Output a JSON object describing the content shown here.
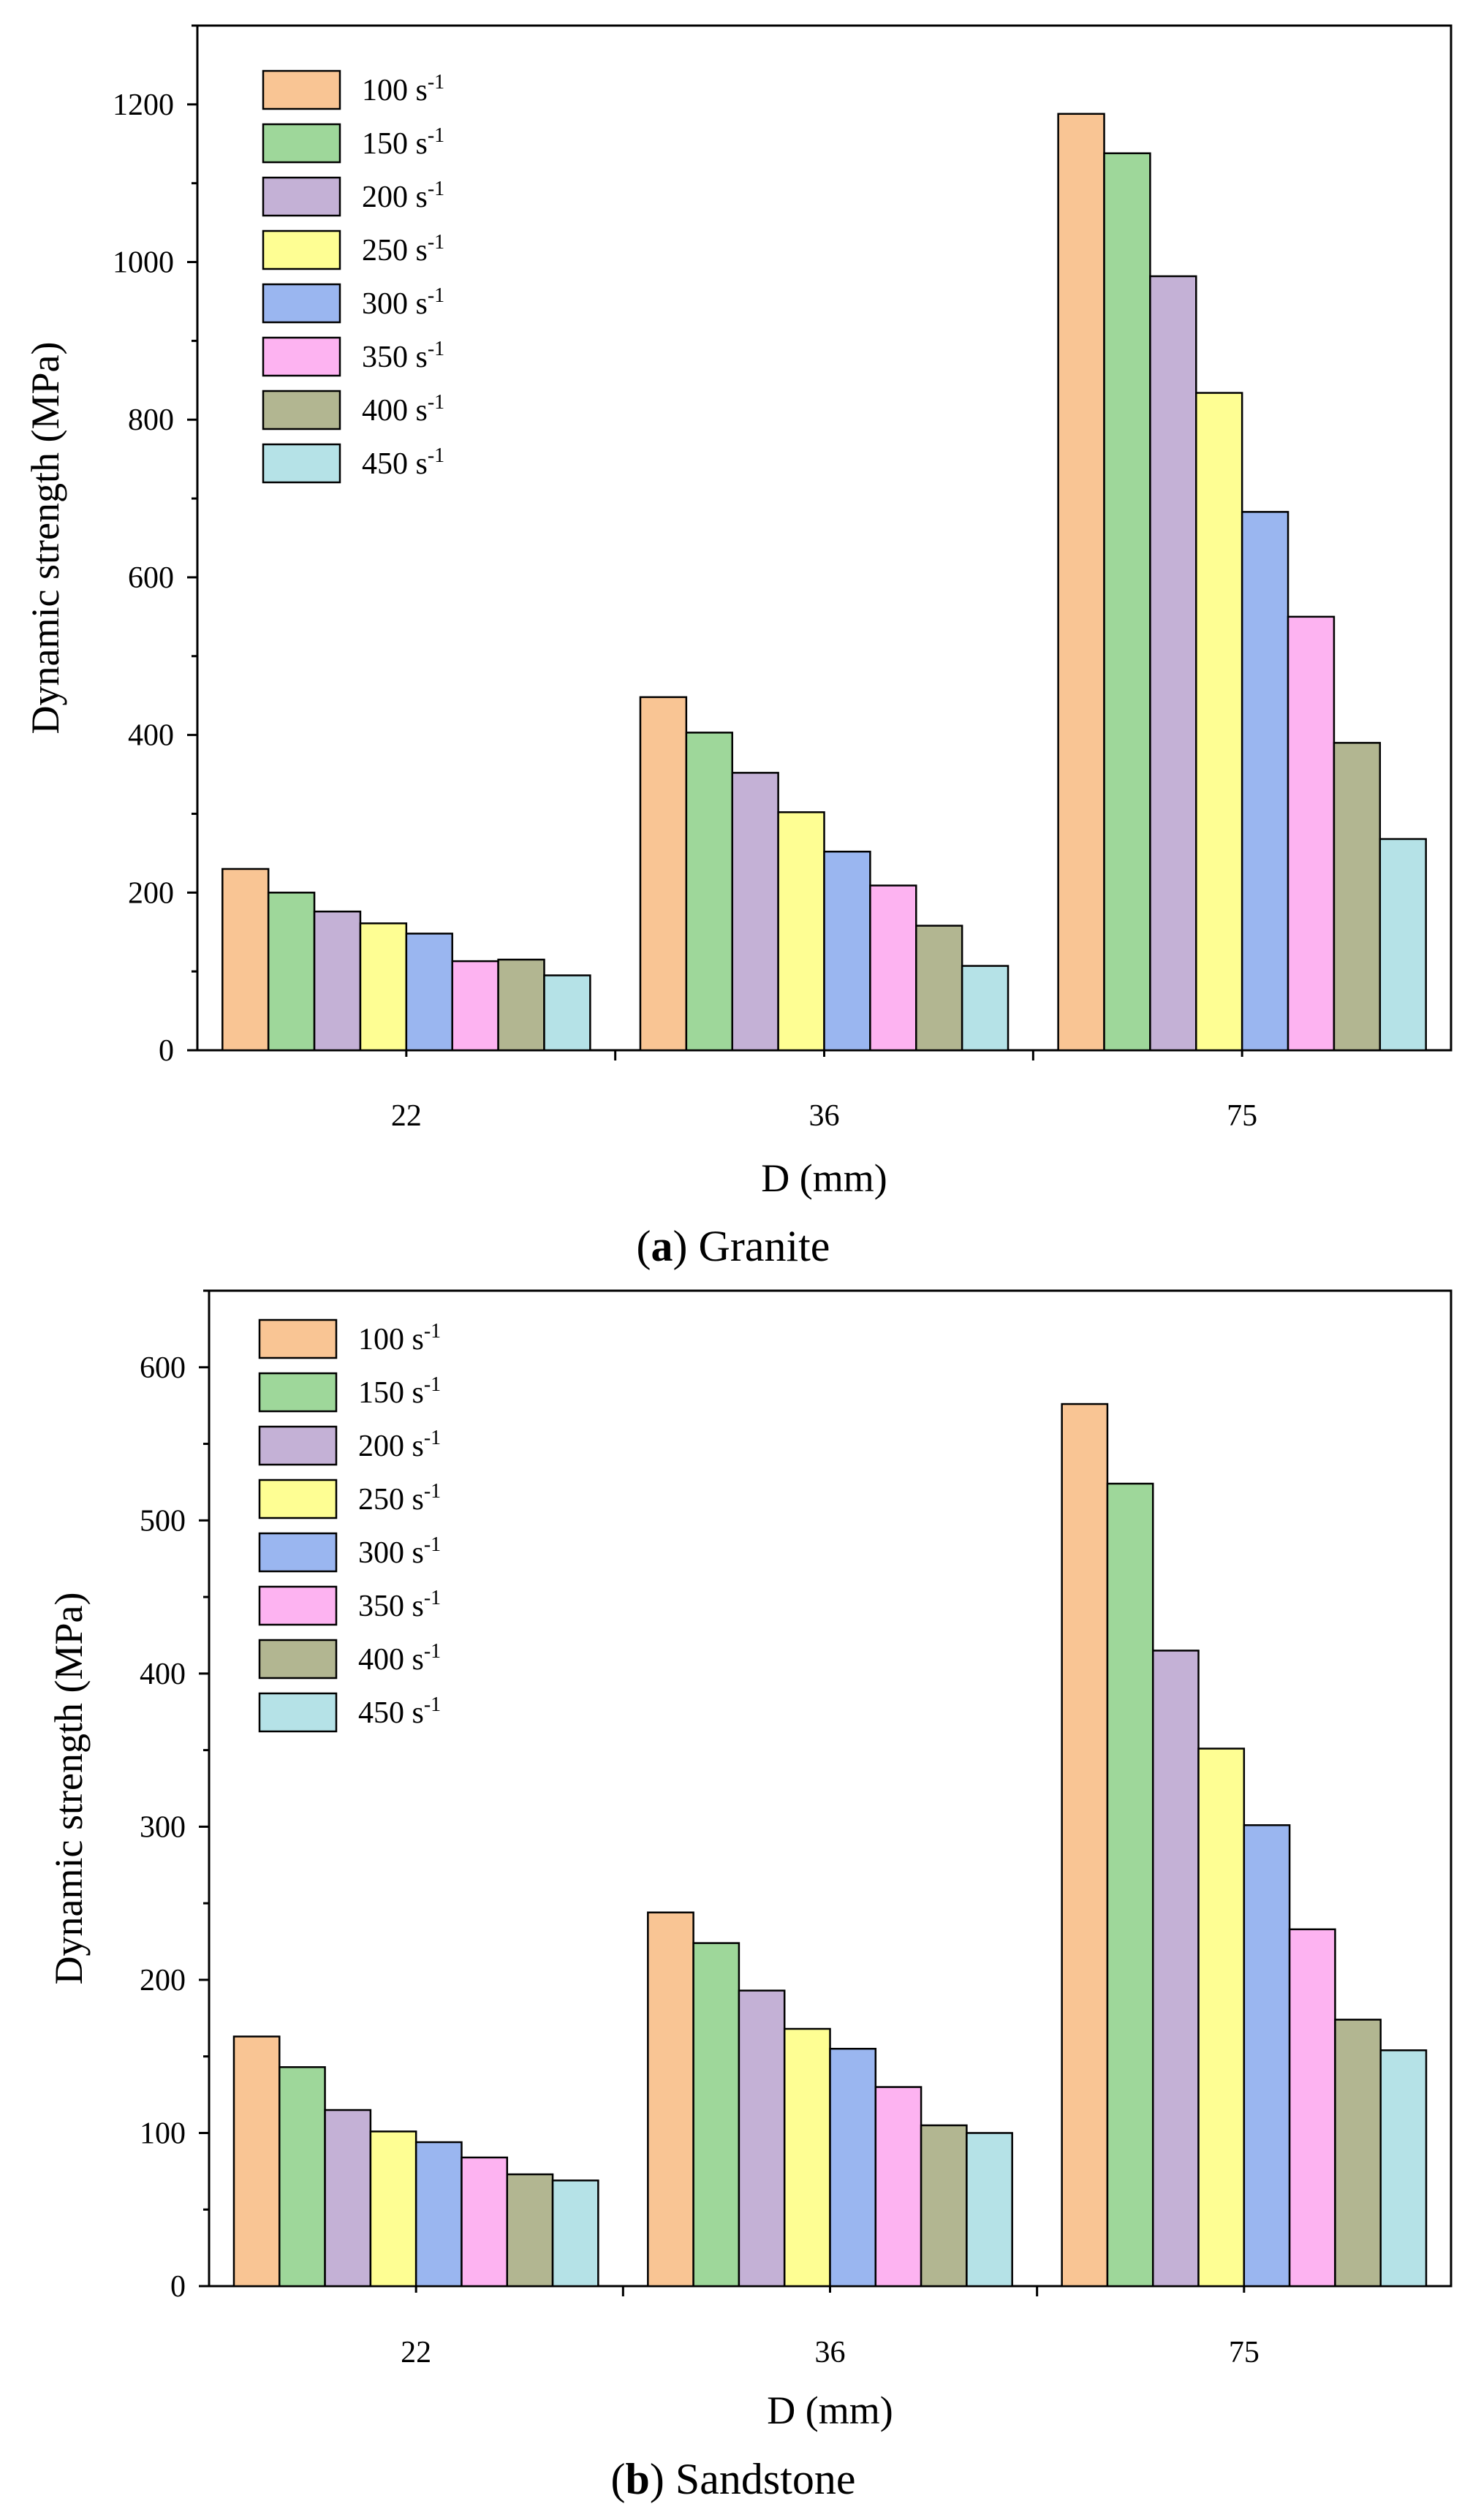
{
  "chart_data": [
    {
      "type": "bar",
      "panel_letter": "a",
      "caption": "Granite",
      "title": "",
      "xlabel": "D (mm)",
      "ylabel": "Dynamic strength (MPa)",
      "ylim": [
        0,
        1300
      ],
      "yticks": [
        0,
        200,
        400,
        600,
        800,
        1000,
        1200
      ],
      "categories": [
        "22",
        "36",
        "75"
      ],
      "legend_position": "top-left",
      "series": [
        {
          "name": "100 s",
          "sup": "-1",
          "color": "#F9C594",
          "values": [
            230,
            448,
            1188
          ]
        },
        {
          "name": "150 s",
          "sup": "-1",
          "color": "#9ED79A",
          "values": [
            200,
            403,
            1138
          ]
        },
        {
          "name": "200 s",
          "sup": "-1",
          "color": "#C4B1D6",
          "values": [
            176,
            352,
            982
          ]
        },
        {
          "name": "250 s",
          "sup": "-1",
          "color": "#FEFE93",
          "values": [
            161,
            302,
            834
          ]
        },
        {
          "name": "300 s",
          "sup": "-1",
          "color": "#9AB6F0",
          "values": [
            148,
            252,
            683
          ]
        },
        {
          "name": "350 s",
          "sup": "-1",
          "color": "#FDB3F1",
          "values": [
            113,
            209,
            550
          ]
        },
        {
          "name": "400 s",
          "sup": "-1",
          "color": "#B2B691",
          "values": [
            115,
            158,
            390
          ]
        },
        {
          "name": "450 s",
          "sup": "-1",
          "color": "#B5E2E7",
          "values": [
            95,
            107,
            268
          ]
        }
      ]
    },
    {
      "type": "bar",
      "panel_letter": "b",
      "caption": "Sandstone",
      "title": "",
      "xlabel": "D (mm)",
      "ylabel": "Dynamic strength (MPa)",
      "ylim": [
        0,
        650
      ],
      "yticks": [
        0,
        100,
        200,
        300,
        400,
        500,
        600
      ],
      "categories": [
        "22",
        "36",
        "75"
      ],
      "legend_position": "top-left",
      "series": [
        {
          "name": "100 s",
          "sup": "-1",
          "color": "#F9C594",
          "values": [
            163,
            244,
            576
          ]
        },
        {
          "name": "150 s",
          "sup": "-1",
          "color": "#9ED79A",
          "values": [
            143,
            224,
            524
          ]
        },
        {
          "name": "200 s",
          "sup": "-1",
          "color": "#C4B1D6",
          "values": [
            115,
            193,
            415
          ]
        },
        {
          "name": "250 s",
          "sup": "-1",
          "color": "#FEFE93",
          "values": [
            101,
            168,
            351
          ]
        },
        {
          "name": "300 s",
          "sup": "-1",
          "color": "#9AB6F0",
          "values": [
            94,
            155,
            301
          ]
        },
        {
          "name": "350 s",
          "sup": "-1",
          "color": "#FDB3F1",
          "values": [
            84,
            130,
            233
          ]
        },
        {
          "name": "400 s",
          "sup": "-1",
          "color": "#B2B691",
          "values": [
            73,
            105,
            174
          ]
        },
        {
          "name": "450 s",
          "sup": "-1",
          "color": "#B5E2E7",
          "values": [
            69,
            100,
            154
          ]
        }
      ]
    }
  ]
}
